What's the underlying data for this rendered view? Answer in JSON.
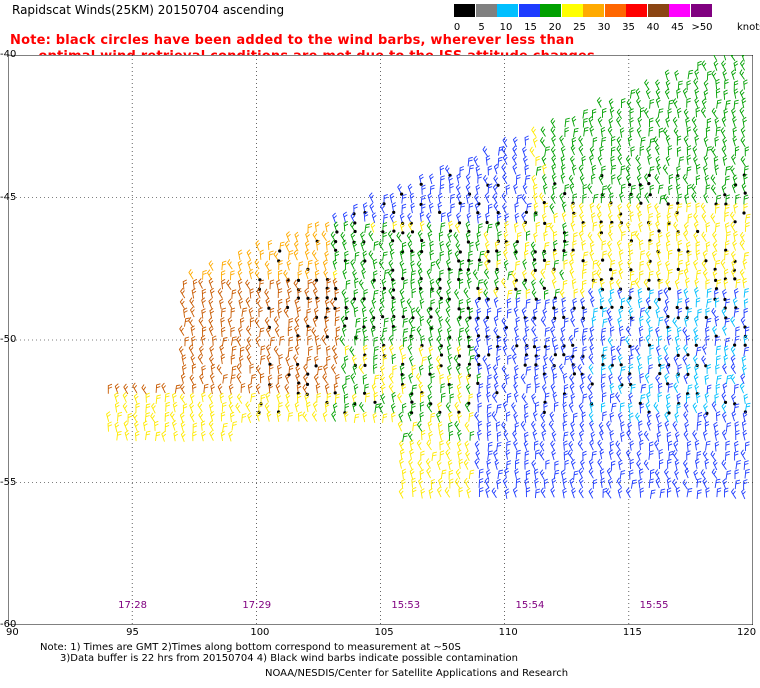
{
  "header": {
    "title": "Rapidscat Winds(25KM) 20150704 ascending",
    "note_line1": "Note: black circles have been added to the wind barbs, wherever less than",
    "note_line2": "      optimal wind retrieval conditions are met due to the ISS attitude changes."
  },
  "scale": {
    "labels": [
      "0",
      "5",
      "10",
      "15",
      "20",
      "25",
      "30",
      "35",
      "40",
      "45",
      ">50"
    ],
    "units": "knots",
    "colors": [
      "#000000",
      "#808080",
      "#00bfff",
      "#1e3cff",
      "#00a000",
      "#ffff00",
      "#ffaa00",
      "#ff6600",
      "#ff0000",
      "#8b4513",
      "#ff00ff",
      "#800080"
    ]
  },
  "map": {
    "lat_labels": [
      "-40",
      "-45",
      "-50",
      "-55",
      "-60"
    ],
    "lon_labels": [
      "90",
      "95",
      "100",
      "105",
      "110",
      "115",
      "120"
    ],
    "time_labels": [
      "17:28",
      "17:29",
      "15:53",
      "15:54",
      "15:55"
    ]
  },
  "footer": {
    "line1": "Note: 1) Times are GMT 2)Times along bottom correspond to measurement at ~50S",
    "line2": "3)Data buffer is 22 hrs from 20150704 4) Black wind barbs indicate possible contamination",
    "line3": "NOAA/NESDIS/Center for Satellite Applications and Research"
  }
}
